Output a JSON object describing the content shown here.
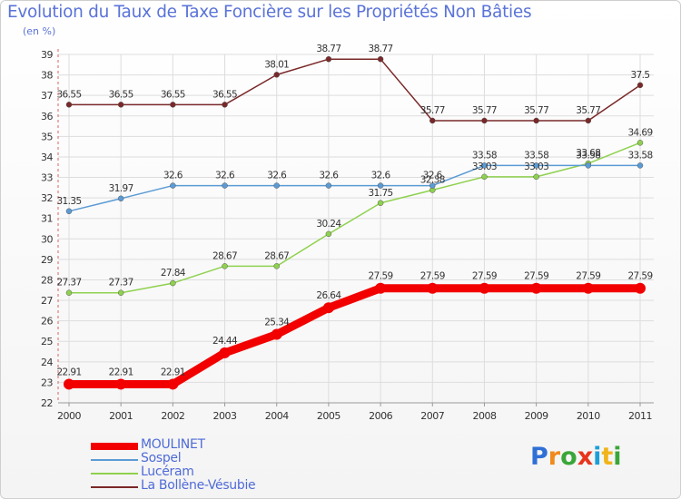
{
  "header": {
    "title": "Evolution du Taux de Taxe Foncière sur les Propriétés Non Bâties",
    "unit": "(en %)"
  },
  "chart_data": {
    "type": "line",
    "title": "Evolution du Taux de Taxe Foncière sur les Propriétés Non Bâties",
    "ylabel": "(en %)",
    "xlabel": "",
    "categories": [
      "2000",
      "2001",
      "2002",
      "2003",
      "2004",
      "2005",
      "2006",
      "2007",
      "2008",
      "2009",
      "2010",
      "2011"
    ],
    "ylim": [
      22,
      39
    ],
    "yticks": [
      22,
      23,
      24,
      25,
      26,
      27,
      28,
      29,
      30,
      31,
      32,
      33,
      34,
      35,
      36,
      37,
      38,
      39
    ],
    "grid": true,
    "legend_position": "bottom-left",
    "series": [
      {
        "name": "MOULINET",
        "color": "#f20000",
        "values": [
          22.91,
          22.91,
          22.91,
          24.44,
          25.34,
          26.64,
          27.59,
          27.59,
          27.59,
          27.59,
          27.59,
          27.59
        ],
        "labels": [
          "22.91",
          "22.91",
          "22.91",
          "24.44",
          "25.34",
          "26.64",
          "27.59",
          "27.59",
          "27.59",
          "27.59",
          "27.59",
          "27.59"
        ]
      },
      {
        "name": "Sospel",
        "color": "#5b9bd5",
        "values": [
          31.35,
          31.97,
          32.6,
          32.6,
          32.6,
          32.6,
          32.6,
          32.6,
          33.58,
          33.58,
          33.58,
          33.58
        ],
        "labels": [
          "31.35",
          "31.97",
          "32.6",
          "32.6",
          "32.6",
          "32.6",
          "32.6",
          "32.6",
          "33.58",
          "33.58",
          "33.58",
          "33.58"
        ]
      },
      {
        "name": "Lucéram",
        "color": "#8fd14f",
        "values": [
          27.37,
          27.37,
          27.84,
          28.67,
          28.67,
          30.24,
          31.75,
          32.38,
          33.03,
          33.03,
          33.68,
          34.69
        ],
        "labels": [
          "27.37",
          "27.37",
          "27.84",
          "28.67",
          "28.67",
          "30.24",
          "31.75",
          "32.38",
          "33.03",
          "33.03",
          "33.68",
          "34.69"
        ]
      },
      {
        "name": "La Bollène-Vésubie",
        "color": "#7a2828",
        "values": [
          36.55,
          36.55,
          36.55,
          36.55,
          38.01,
          38.77,
          38.77,
          35.77,
          35.77,
          35.77,
          35.77,
          37.5
        ],
        "labels": [
          "36.55",
          "36.55",
          "36.55",
          "36.55",
          "38.01",
          "38.77",
          "38.77",
          "35.77",
          "35.77",
          "35.77",
          "35.77",
          "37.5"
        ]
      }
    ]
  },
  "legend": {
    "items": [
      {
        "label": "MOULINET",
        "color": "#f20000"
      },
      {
        "label": "Sospel",
        "color": "#5b9bd5"
      },
      {
        "label": "Lucéram",
        "color": "#8fd14f"
      },
      {
        "label": "La Bollène-Vésubie",
        "color": "#7a2828"
      }
    ]
  },
  "logo": {
    "letters": [
      "P",
      "r",
      "o",
      "x",
      "i",
      "t",
      "i"
    ],
    "colors": [
      "#2f6fd6",
      "#f08a1c",
      "#3aa63a",
      "#e8341c",
      "#1c9fd6",
      "#f0b41c",
      "#3aa63a"
    ]
  }
}
